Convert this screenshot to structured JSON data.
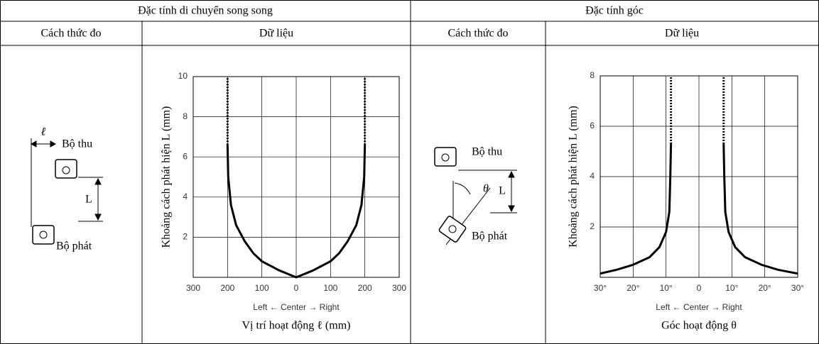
{
  "table": {
    "groups": [
      "Đặc tính di chuyển song song",
      "Đặc tính góc"
    ],
    "subheaders": [
      "Cách thức đo",
      "Dữ liệu",
      "Cách thức đo",
      "Dữ liệu"
    ]
  },
  "diagrams": [
    {
      "offset": "ℓ",
      "receiver": "Bộ thu",
      "distance": "L",
      "emitter": "Bộ phát"
    },
    {
      "receiver": "Bộ thu",
      "angle": "θ",
      "distance": "L",
      "emitter": "Bộ phát"
    }
  ],
  "chart_data": [
    {
      "type": "line",
      "ylabel": "Khoảng cách phát hiện L (mm)",
      "x_direction": "Left ← Center → Right",
      "xlabel": "Vị trí hoạt động ℓ (mm)",
      "xlim": [
        -300,
        300
      ],
      "ylim": [
        0,
        10
      ],
      "xticks": [
        {
          "value": -300,
          "label": "300"
        },
        {
          "value": -200,
          "label": "200"
        },
        {
          "value": -100,
          "label": "100"
        },
        0,
        100,
        200,
        300
      ],
      "yticks": [
        2,
        4,
        6,
        8,
        10
      ],
      "grid": true,
      "series": [
        {
          "color": "#000000",
          "dashed": false,
          "x": [
            -200,
            -198,
            -190,
            -175,
            -150,
            -125,
            -100,
            -50,
            0,
            50,
            100,
            125,
            150,
            175,
            190,
            198,
            200
          ],
          "values": [
            6.6,
            5,
            3.6,
            2.6,
            1.8,
            1.2,
            0.8,
            0.35,
            0,
            0.35,
            0.8,
            1.2,
            1.8,
            2.6,
            3.6,
            5,
            6.6
          ]
        },
        {
          "color": "#000000",
          "dashed": true,
          "x": [
            -200,
            -200,
            null,
            200,
            200
          ],
          "values": [
            6.6,
            10,
            null,
            6.6,
            10
          ]
        }
      ]
    },
    {
      "type": "line",
      "ylabel": "Khoảng cách phát hiện L (mm)",
      "x_direction": "Left ← Center → Right",
      "xlabel": "Góc hoạt động θ",
      "xlim": [
        -30,
        30
      ],
      "ylim": [
        0,
        8
      ],
      "xticks": [
        {
          "value": -30,
          "label": "30°"
        },
        {
          "value": -20,
          "label": "20°"
        },
        {
          "value": -10,
          "label": "10°"
        },
        0,
        {
          "value": 10,
          "label": "10°"
        },
        {
          "value": 20,
          "label": "20°"
        },
        {
          "value": 30,
          "label": "30°"
        }
      ],
      "yticks": [
        2,
        4,
        6,
        8
      ],
      "grid": true,
      "series": [
        {
          "color": "#000000",
          "dashed": false,
          "x": [
            -30,
            -25,
            -20,
            -15,
            -12,
            -10,
            -9,
            -8.7,
            -8.5,
            null,
            7.5,
            7.7,
            8,
            9,
            11,
            14,
            19,
            24,
            30
          ],
          "values": [
            0.15,
            0.3,
            0.5,
            0.8,
            1.2,
            1.8,
            2.6,
            4,
            5.3,
            null,
            5.3,
            4,
            2.6,
            1.8,
            1.2,
            0.8,
            0.5,
            0.3,
            0.15
          ]
        },
        {
          "color": "#000000",
          "dashed": true,
          "x": [
            -8.5,
            -8.5,
            null,
            7.5,
            7.5
          ],
          "values": [
            5.3,
            8,
            null,
            5.3,
            8
          ]
        }
      ]
    }
  ]
}
